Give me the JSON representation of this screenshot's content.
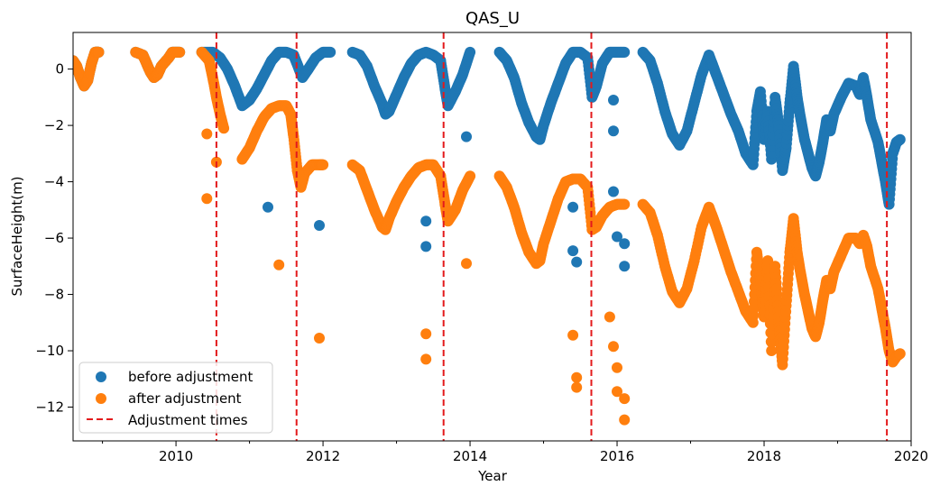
{
  "chart_data": {
    "type": "scatter",
    "title": "QAS_U",
    "xlabel": "Year",
    "ylabel": "SurfaceHeight(m)",
    "xlim": [
      2008.6,
      2020.0
    ],
    "ylim": [
      -13.2,
      1.3
    ],
    "x_ticks": [
      2010,
      2012,
      2014,
      2016,
      2018,
      2020
    ],
    "x_minor_ticks": [
      2009,
      2011,
      2013,
      2015,
      2017,
      2019
    ],
    "y_ticks": [
      0,
      -2,
      -4,
      -6,
      -8,
      -10,
      -12
    ],
    "y_tick_labels": [
      "0",
      "−2",
      "−4",
      "−6",
      "−8",
      "−10",
      "−12"
    ],
    "grid": false,
    "legend": {
      "placement": "lower-left",
      "entries": [
        "before adjustment",
        "after adjustment",
        "Adjustment times"
      ]
    },
    "adjustment_times": [
      2010.55,
      2011.64,
      2013.64,
      2015.65,
      2019.67
    ],
    "series": [
      {
        "name": "before adjustment",
        "color": "#1f77b4",
        "marker": "circle",
        "outliers": [
          [
            2011.25,
            -4.9
          ],
          [
            2011.95,
            -5.55
          ],
          [
            2013.4,
            -5.4
          ],
          [
            2013.4,
            -6.3
          ],
          [
            2013.95,
            -2.4
          ],
          [
            2015.4,
            -4.9
          ],
          [
            2015.4,
            -6.45
          ],
          [
            2015.45,
            -6.85
          ],
          [
            2015.95,
            -2.2
          ],
          [
            2015.95,
            -4.35
          ],
          [
            2016.0,
            -5.95
          ],
          [
            2016.1,
            -6.2
          ],
          [
            2016.1,
            -7.0
          ],
          [
            2015.95,
            -1.1
          ]
        ],
        "points": [
          [
            2008.6,
            0.3
          ],
          [
            2008.65,
            0.1
          ],
          [
            2008.7,
            -0.3
          ],
          [
            2008.75,
            -0.6
          ],
          [
            2008.8,
            -0.4
          ],
          [
            2008.85,
            0.2
          ],
          [
            2008.9,
            0.6
          ],
          [
            2008.95,
            0.6
          ],
          [
            2009.45,
            0.6
          ],
          [
            2009.55,
            0.5
          ],
          [
            2009.6,
            0.2
          ],
          [
            2009.65,
            -0.1
          ],
          [
            2009.7,
            -0.3
          ],
          [
            2009.75,
            -0.2
          ],
          [
            2009.8,
            0.1
          ],
          [
            2009.9,
            0.4
          ],
          [
            2009.95,
            0.6
          ],
          [
            2010.05,
            0.6
          ],
          [
            2010.35,
            0.6
          ],
          [
            2010.5,
            0.6
          ],
          [
            2010.6,
            0.4
          ],
          [
            2010.7,
            0.0
          ],
          [
            2010.8,
            -0.6
          ],
          [
            2010.9,
            -1.3
          ],
          [
            2011.0,
            -1.1
          ],
          [
            2011.1,
            -0.7
          ],
          [
            2011.2,
            -0.2
          ],
          [
            2011.3,
            0.3
          ],
          [
            2011.4,
            0.6
          ],
          [
            2011.5,
            0.6
          ],
          [
            2011.6,
            0.5
          ],
          [
            2011.66,
            0.1
          ],
          [
            2011.72,
            -0.3
          ],
          [
            2011.8,
            0.0
          ],
          [
            2011.9,
            0.4
          ],
          [
            2012.0,
            0.6
          ],
          [
            2012.1,
            0.6
          ],
          [
            2012.4,
            0.6
          ],
          [
            2012.5,
            0.5
          ],
          [
            2012.6,
            0.1
          ],
          [
            2012.7,
            -0.6
          ],
          [
            2012.8,
            -1.2
          ],
          [
            2012.85,
            -1.6
          ],
          [
            2012.9,
            -1.5
          ],
          [
            2013.0,
            -0.9
          ],
          [
            2013.1,
            -0.3
          ],
          [
            2013.2,
            0.2
          ],
          [
            2013.3,
            0.5
          ],
          [
            2013.4,
            0.6
          ],
          [
            2013.5,
            0.5
          ],
          [
            2013.6,
            0.3
          ],
          [
            2013.66,
            -0.7
          ],
          [
            2013.7,
            -1.3
          ],
          [
            2013.8,
            -0.8
          ],
          [
            2013.9,
            -0.2
          ],
          [
            2014.0,
            0.6
          ],
          [
            2014.4,
            0.6
          ],
          [
            2014.5,
            0.3
          ],
          [
            2014.6,
            -0.3
          ],
          [
            2014.7,
            -1.2
          ],
          [
            2014.8,
            -1.9
          ],
          [
            2014.9,
            -2.4
          ],
          [
            2014.95,
            -2.5
          ],
          [
            2015.0,
            -2.0
          ],
          [
            2015.1,
            -1.2
          ],
          [
            2015.2,
            -0.5
          ],
          [
            2015.3,
            0.2
          ],
          [
            2015.4,
            0.6
          ],
          [
            2015.5,
            0.6
          ],
          [
            2015.6,
            0.4
          ],
          [
            2015.66,
            -1.0
          ],
          [
            2015.72,
            -0.6
          ],
          [
            2015.8,
            0.2
          ],
          [
            2015.9,
            0.6
          ],
          [
            2016.0,
            0.6
          ],
          [
            2016.1,
            0.6
          ],
          [
            2016.35,
            0.6
          ],
          [
            2016.45,
            0.3
          ],
          [
            2016.55,
            -0.5
          ],
          [
            2016.65,
            -1.5
          ],
          [
            2016.75,
            -2.3
          ],
          [
            2016.85,
            -2.7
          ],
          [
            2016.95,
            -2.2
          ],
          [
            2017.05,
            -1.2
          ],
          [
            2017.15,
            -0.2
          ],
          [
            2017.25,
            0.5
          ],
          [
            2017.35,
            -0.2
          ],
          [
            2017.45,
            -0.9
          ],
          [
            2017.55,
            -1.6
          ],
          [
            2017.65,
            -2.2
          ],
          [
            2017.75,
            -3.0
          ],
          [
            2017.85,
            -3.4
          ],
          [
            2017.9,
            -1.5
          ],
          [
            2017.95,
            -0.8
          ],
          [
            2018.0,
            -2.5
          ],
          [
            2018.05,
            -1.5
          ],
          [
            2018.1,
            -3.2
          ],
          [
            2018.15,
            -1.0
          ],
          [
            2018.2,
            -2.0
          ],
          [
            2018.25,
            -3.6
          ],
          [
            2018.3,
            -2.8
          ],
          [
            2018.35,
            -1.2
          ],
          [
            2018.4,
            0.1
          ],
          [
            2018.45,
            -1.0
          ],
          [
            2018.5,
            -1.8
          ],
          [
            2018.55,
            -2.5
          ],
          [
            2018.6,
            -3.0
          ],
          [
            2018.65,
            -3.5
          ],
          [
            2018.7,
            -3.8
          ],
          [
            2018.75,
            -3.3
          ],
          [
            2018.8,
            -2.6
          ],
          [
            2018.85,
            -1.8
          ],
          [
            2018.9,
            -2.2
          ],
          [
            2018.95,
            -1.6
          ],
          [
            2019.05,
            -1.0
          ],
          [
            2019.15,
            -0.5
          ],
          [
            2019.25,
            -0.6
          ],
          [
            2019.3,
            -0.9
          ],
          [
            2019.35,
            -0.3
          ],
          [
            2019.4,
            -1.0
          ],
          [
            2019.45,
            -1.8
          ],
          [
            2019.55,
            -2.6
          ],
          [
            2019.6,
            -3.3
          ],
          [
            2019.65,
            -4.0
          ],
          [
            2019.7,
            -4.8
          ],
          [
            2019.75,
            -3.0
          ],
          [
            2019.8,
            -2.6
          ],
          [
            2019.85,
            -2.5
          ]
        ]
      },
      {
        "name": "after adjustment",
        "color": "#ff7f0e",
        "marker": "circle",
        "outliers": [
          [
            2010.42,
            -2.3
          ],
          [
            2010.42,
            -4.6
          ],
          [
            2010.55,
            -3.3
          ],
          [
            2011.4,
            -6.95
          ],
          [
            2011.95,
            -9.55
          ],
          [
            2013.4,
            -9.4
          ],
          [
            2013.4,
            -10.3
          ],
          [
            2013.95,
            -6.9
          ],
          [
            2015.4,
            -9.45
          ],
          [
            2015.45,
            -10.95
          ],
          [
            2015.45,
            -11.3
          ],
          [
            2015.9,
            -8.8
          ],
          [
            2015.95,
            -9.85
          ],
          [
            2016.0,
            -10.6
          ],
          [
            2016.0,
            -11.45
          ],
          [
            2016.1,
            -11.7
          ],
          [
            2016.1,
            -12.45
          ]
        ],
        "points": [
          [
            2008.6,
            0.3
          ],
          [
            2008.65,
            0.1
          ],
          [
            2008.7,
            -0.3
          ],
          [
            2008.75,
            -0.6
          ],
          [
            2008.8,
            -0.4
          ],
          [
            2008.85,
            0.2
          ],
          [
            2008.9,
            0.6
          ],
          [
            2008.95,
            0.6
          ],
          [
            2009.45,
            0.6
          ],
          [
            2009.55,
            0.5
          ],
          [
            2009.6,
            0.2
          ],
          [
            2009.65,
            -0.1
          ],
          [
            2009.7,
            -0.3
          ],
          [
            2009.75,
            -0.2
          ],
          [
            2009.8,
            0.1
          ],
          [
            2009.9,
            0.4
          ],
          [
            2009.95,
            0.6
          ],
          [
            2010.05,
            0.6
          ],
          [
            2010.35,
            0.6
          ],
          [
            2010.45,
            0.3
          ],
          [
            2010.5,
            -0.3
          ],
          [
            2010.55,
            -1.0
          ],
          [
            2010.6,
            -1.6
          ],
          [
            2010.65,
            -2.1
          ],
          [
            2010.9,
            -3.2
          ],
          [
            2011.0,
            -2.8
          ],
          [
            2011.1,
            -2.2
          ],
          [
            2011.2,
            -1.7
          ],
          [
            2011.3,
            -1.4
          ],
          [
            2011.4,
            -1.3
          ],
          [
            2011.5,
            -1.3
          ],
          [
            2011.56,
            -1.6
          ],
          [
            2011.6,
            -2.4
          ],
          [
            2011.65,
            -3.6
          ],
          [
            2011.7,
            -4.2
          ],
          [
            2011.75,
            -3.7
          ],
          [
            2011.85,
            -3.4
          ],
          [
            2011.95,
            -3.4
          ],
          [
            2012.0,
            -3.4
          ],
          [
            2012.4,
            -3.4
          ],
          [
            2012.5,
            -3.6
          ],
          [
            2012.6,
            -4.3
          ],
          [
            2012.7,
            -5.0
          ],
          [
            2012.8,
            -5.6
          ],
          [
            2012.85,
            -5.7
          ],
          [
            2012.9,
            -5.3
          ],
          [
            2013.0,
            -4.7
          ],
          [
            2013.1,
            -4.2
          ],
          [
            2013.2,
            -3.8
          ],
          [
            2013.3,
            -3.5
          ],
          [
            2013.4,
            -3.4
          ],
          [
            2013.5,
            -3.4
          ],
          [
            2013.6,
            -3.8
          ],
          [
            2013.66,
            -4.8
          ],
          [
            2013.7,
            -5.4
          ],
          [
            2013.8,
            -5.0
          ],
          [
            2013.9,
            -4.3
          ],
          [
            2014.0,
            -3.8
          ],
          [
            2014.4,
            -3.8
          ],
          [
            2014.5,
            -4.2
          ],
          [
            2014.6,
            -4.9
          ],
          [
            2014.7,
            -5.8
          ],
          [
            2014.8,
            -6.5
          ],
          [
            2014.9,
            -6.9
          ],
          [
            2014.95,
            -6.8
          ],
          [
            2015.0,
            -6.2
          ],
          [
            2015.1,
            -5.4
          ],
          [
            2015.2,
            -4.6
          ],
          [
            2015.3,
            -4.0
          ],
          [
            2015.4,
            -3.9
          ],
          [
            2015.5,
            -3.9
          ],
          [
            2015.6,
            -4.2
          ],
          [
            2015.66,
            -5.7
          ],
          [
            2015.72,
            -5.6
          ],
          [
            2015.8,
            -5.2
          ],
          [
            2015.9,
            -4.9
          ],
          [
            2016.0,
            -4.8
          ],
          [
            2016.1,
            -4.8
          ],
          [
            2016.35,
            -4.8
          ],
          [
            2016.45,
            -5.1
          ],
          [
            2016.55,
            -5.9
          ],
          [
            2016.65,
            -7.0
          ],
          [
            2016.75,
            -7.9
          ],
          [
            2016.85,
            -8.3
          ],
          [
            2016.95,
            -7.8
          ],
          [
            2017.05,
            -6.8
          ],
          [
            2017.15,
            -5.6
          ],
          [
            2017.25,
            -4.9
          ],
          [
            2017.35,
            -5.6
          ],
          [
            2017.45,
            -6.4
          ],
          [
            2017.55,
            -7.2
          ],
          [
            2017.65,
            -7.9
          ],
          [
            2017.75,
            -8.6
          ],
          [
            2017.85,
            -9.0
          ],
          [
            2017.9,
            -6.5
          ],
          [
            2017.95,
            -7.5
          ],
          [
            2018.0,
            -8.8
          ],
          [
            2018.05,
            -6.8
          ],
          [
            2018.1,
            -10.0
          ],
          [
            2018.15,
            -7.0
          ],
          [
            2018.2,
            -9.0
          ],
          [
            2018.25,
            -10.5
          ],
          [
            2018.3,
            -8.4
          ],
          [
            2018.35,
            -6.5
          ],
          [
            2018.4,
            -5.3
          ],
          [
            2018.45,
            -6.5
          ],
          [
            2018.5,
            -7.3
          ],
          [
            2018.55,
            -8.0
          ],
          [
            2018.6,
            -8.6
          ],
          [
            2018.65,
            -9.2
          ],
          [
            2018.7,
            -9.5
          ],
          [
            2018.75,
            -9.0
          ],
          [
            2018.8,
            -8.2
          ],
          [
            2018.85,
            -7.5
          ],
          [
            2018.9,
            -7.8
          ],
          [
            2018.95,
            -7.2
          ],
          [
            2019.05,
            -6.6
          ],
          [
            2019.15,
            -6.0
          ],
          [
            2019.25,
            -6.0
          ],
          [
            2019.3,
            -6.2
          ],
          [
            2019.35,
            -5.9
          ],
          [
            2019.4,
            -6.3
          ],
          [
            2019.45,
            -7.0
          ],
          [
            2019.55,
            -7.8
          ],
          [
            2019.6,
            -8.5
          ],
          [
            2019.65,
            -9.2
          ],
          [
            2019.7,
            -10.0
          ],
          [
            2019.75,
            -10.4
          ],
          [
            2019.8,
            -10.2
          ],
          [
            2019.85,
            -10.1
          ]
        ]
      }
    ]
  }
}
